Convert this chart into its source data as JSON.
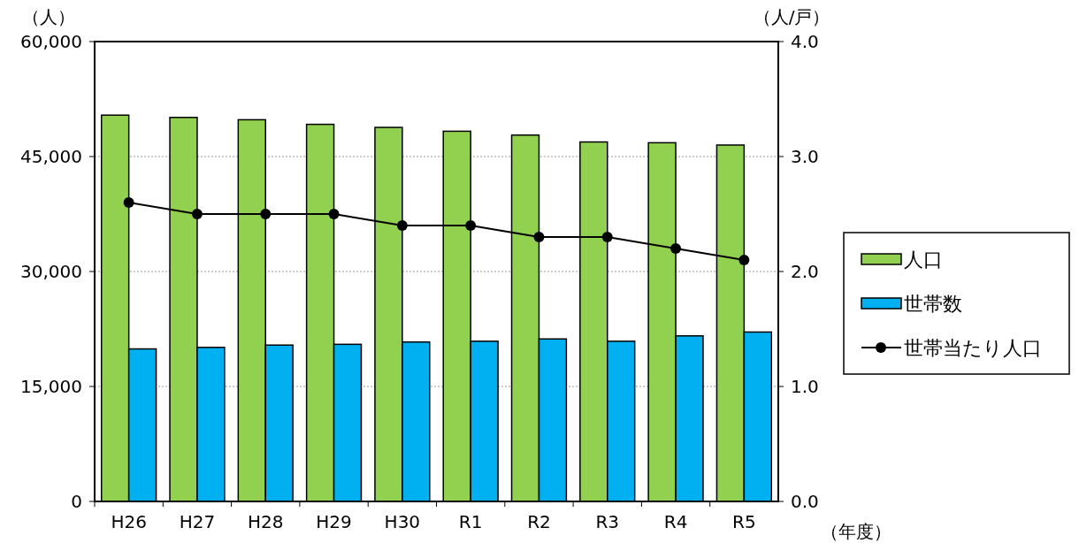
{
  "chart_data": {
    "type": "bar",
    "categories": [
      "H26",
      "H27",
      "H28",
      "H29",
      "H30",
      "R1",
      "R2",
      "R3",
      "R4",
      "R5"
    ],
    "series": [
      {
        "name": "人口",
        "color": "#92d050",
        "values": [
          50400,
          50100,
          49800,
          49200,
          48800,
          48300,
          47800,
          46900,
          46800,
          46500
        ]
      },
      {
        "name": "世帯数",
        "color": "#00b0f0",
        "values": [
          19900,
          20100,
          20400,
          20500,
          20800,
          20900,
          21200,
          20900,
          21600,
          22100
        ]
      },
      {
        "name": "世帯当たり人口",
        "type": "line",
        "axis": "y2",
        "color": "#000000",
        "marker": "circle",
        "values": [
          2.6,
          2.5,
          2.5,
          2.5,
          2.4,
          2.4,
          2.3,
          2.3,
          2.2,
          2.1
        ]
      }
    ],
    "ylabel": "（人）",
    "y2label": "（人/戸）",
    "xlabel": "（年度）",
    "ylim": [
      0,
      60000
    ],
    "yticks": [
      0,
      {
        "value": 15000,
        "label": "15,000"
      },
      {
        "value": 30000,
        "label": "30,000"
      },
      {
        "value": 45000,
        "label": "45,000"
      },
      {
        "value": 60000,
        "label": "60,000"
      }
    ],
    "y2lim": [
      0,
      4
    ],
    "y2ticks": [
      {
        "value": 0,
        "label": "0.0"
      },
      {
        "value": 1,
        "label": "1.0"
      },
      {
        "value": 2,
        "label": "2.0"
      },
      {
        "value": 3,
        "label": "3.0"
      },
      {
        "value": 4,
        "label": "4.0"
      }
    ],
    "grid": "y",
    "legend": "right"
  }
}
